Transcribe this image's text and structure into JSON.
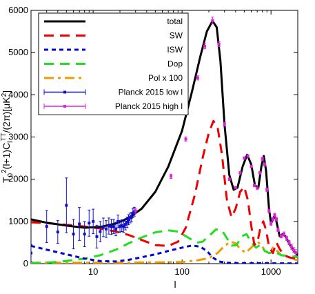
{
  "chart_data": {
    "type": "line",
    "xlabel": "l",
    "ylabel_parts": [
      "T",
      "0",
      "2",
      "(l+1)C",
      "l",
      "TT",
      "/(2π)[μK",
      "2",
      "]"
    ],
    "xscale": "log",
    "xlim": [
      2,
      2000
    ],
    "ylim": [
      0,
      6000
    ],
    "x_ticks": [
      {
        "value": 10,
        "label": "10"
      },
      {
        "value": 100,
        "label": "100"
      },
      {
        "value": 1000,
        "label": "1000"
      }
    ],
    "y_ticks": [
      {
        "value": 0,
        "label": "0"
      },
      {
        "value": 1000,
        "label": "1000"
      },
      {
        "value": 2000,
        "label": "2000"
      },
      {
        "value": 3000,
        "label": "3000"
      },
      {
        "value": 4000,
        "label": "4000"
      },
      {
        "value": 5000,
        "label": "5000"
      },
      {
        "value": 6000,
        "label": "6000"
      }
    ],
    "legend_position": "top-left",
    "series": [
      {
        "name": "total",
        "color": "#000000",
        "style": "solid",
        "points": [
          [
            2,
            1050
          ],
          [
            3,
            970
          ],
          [
            5,
            900
          ],
          [
            8,
            850
          ],
          [
            12,
            870
          ],
          [
            18,
            950
          ],
          [
            25,
            1080
          ],
          [
            35,
            1300
          ],
          [
            50,
            1700
          ],
          [
            70,
            2300
          ],
          [
            100,
            3150
          ],
          [
            130,
            4100
          ],
          [
            160,
            4900
          ],
          [
            190,
            5500
          ],
          [
            220,
            5750
          ],
          [
            245,
            5600
          ],
          [
            270,
            4800
          ],
          [
            300,
            3300
          ],
          [
            340,
            2100
          ],
          [
            380,
            1750
          ],
          [
            420,
            1800
          ],
          [
            480,
            2300
          ],
          [
            540,
            2580
          ],
          [
            600,
            2350
          ],
          [
            660,
            1850
          ],
          [
            720,
            1800
          ],
          [
            780,
            2300
          ],
          [
            830,
            2550
          ],
          [
            880,
            2200
          ],
          [
            950,
            1300
          ],
          [
            1000,
            950
          ],
          [
            1050,
            1050
          ],
          [
            1100,
            1150
          ],
          [
            1150,
            1000
          ],
          [
            1250,
            650
          ],
          [
            1350,
            700
          ],
          [
            1450,
            650
          ],
          [
            1600,
            480
          ],
          [
            1800,
            300
          ],
          [
            2000,
            200
          ]
        ]
      },
      {
        "name": "SW",
        "color": "#ee0000",
        "style": "dashed",
        "points": [
          [
            2,
            980
          ],
          [
            3,
            960
          ],
          [
            5,
            920
          ],
          [
            8,
            880
          ],
          [
            12,
            830
          ],
          [
            18,
            760
          ],
          [
            25,
            680
          ],
          [
            35,
            560
          ],
          [
            50,
            440
          ],
          [
            70,
            420
          ],
          [
            90,
            520
          ],
          [
            110,
            850
          ],
          [
            140,
            1650
          ],
          [
            170,
            2500
          ],
          [
            200,
            3100
          ],
          [
            225,
            3380
          ],
          [
            250,
            3250
          ],
          [
            280,
            2600
          ],
          [
            320,
            1500
          ],
          [
            360,
            1100
          ],
          [
            400,
            1300
          ],
          [
            450,
            1700
          ],
          [
            500,
            1820
          ],
          [
            550,
            1500
          ],
          [
            600,
            900
          ],
          [
            650,
            450
          ],
          [
            700,
            480
          ],
          [
            760,
            850
          ],
          [
            820,
            1000
          ],
          [
            880,
            800
          ],
          [
            950,
            400
          ],
          [
            1050,
            250
          ],
          [
            1150,
            500
          ],
          [
            1250,
            350
          ],
          [
            1400,
            200
          ],
          [
            1600,
            150
          ],
          [
            2000,
            100
          ]
        ]
      },
      {
        "name": "ISW",
        "color": "#0000cc",
        "style": "dashed",
        "points": [
          [
            2,
            420
          ],
          [
            3,
            330
          ],
          [
            5,
            220
          ],
          [
            8,
            120
          ],
          [
            12,
            60
          ],
          [
            18,
            50
          ],
          [
            25,
            90
          ],
          [
            35,
            150
          ],
          [
            50,
            220
          ],
          [
            70,
            300
          ],
          [
            100,
            380
          ],
          [
            130,
            430
          ],
          [
            160,
            400
          ],
          [
            190,
            300
          ],
          [
            220,
            150
          ],
          [
            260,
            50
          ],
          [
            320,
            20
          ],
          [
            450,
            10
          ],
          [
            2000,
            5
          ]
        ]
      },
      {
        "name": "Dop",
        "color": "#22dd22",
        "style": "dashed",
        "points": [
          [
            2,
            10
          ],
          [
            4,
            40
          ],
          [
            8,
            120
          ],
          [
            12,
            200
          ],
          [
            18,
            330
          ],
          [
            25,
            480
          ],
          [
            35,
            620
          ],
          [
            50,
            740
          ],
          [
            70,
            790
          ],
          [
            90,
            760
          ],
          [
            110,
            650
          ],
          [
            130,
            560
          ],
          [
            150,
            500
          ],
          [
            170,
            520
          ],
          [
            200,
            650
          ],
          [
            240,
            810
          ],
          [
            280,
            790
          ],
          [
            320,
            600
          ],
          [
            360,
            430
          ],
          [
            410,
            440
          ],
          [
            470,
            650
          ],
          [
            530,
            700
          ],
          [
            600,
            500
          ],
          [
            680,
            380
          ],
          [
            760,
            450
          ],
          [
            850,
            300
          ],
          [
            950,
            250
          ],
          [
            1100,
            280
          ],
          [
            1300,
            200
          ],
          [
            1600,
            180
          ],
          [
            2000,
            150
          ]
        ]
      },
      {
        "name": "Pol x 100",
        "color": "#ee9a00",
        "style": "dashed",
        "points": [
          [
            2,
            20
          ],
          [
            10,
            20
          ],
          [
            50,
            30
          ],
          [
            100,
            40
          ],
          [
            150,
            80
          ],
          [
            200,
            130
          ],
          [
            250,
            250
          ],
          [
            300,
            420
          ],
          [
            350,
            520
          ],
          [
            400,
            480
          ],
          [
            450,
            350
          ],
          [
            520,
            260
          ],
          [
            600,
            380
          ],
          [
            700,
            520
          ],
          [
            780,
            450
          ],
          [
            850,
            300
          ],
          [
            950,
            250
          ],
          [
            1050,
            380
          ],
          [
            1150,
            320
          ],
          [
            1300,
            200
          ],
          [
            1500,
            180
          ],
          [
            1700,
            120
          ],
          [
            2000,
            80
          ]
        ]
      }
    ],
    "data_series": [
      {
        "name": "Planck 2015 low l",
        "color": "#1010cc",
        "points": [
          [
            2,
            250,
            200
          ],
          [
            3,
            880,
            380
          ],
          [
            4,
            750,
            270
          ],
          [
            5,
            1380,
            650
          ],
          [
            6,
            700,
            350
          ],
          [
            7,
            940,
            390
          ],
          [
            8,
            700,
            300
          ],
          [
            9,
            960,
            310
          ],
          [
            10,
            1000,
            290
          ],
          [
            11,
            640,
            270
          ],
          [
            12,
            760,
            240
          ],
          [
            13,
            860,
            220
          ],
          [
            14,
            820,
            200
          ],
          [
            15,
            890,
            190
          ],
          [
            16,
            870,
            180
          ],
          [
            17,
            880,
            170
          ],
          [
            18,
            820,
            160
          ],
          [
            19,
            1000,
            150
          ],
          [
            20,
            880,
            140
          ],
          [
            21,
            900,
            140
          ],
          [
            22,
            870,
            130
          ],
          [
            23,
            930,
            130
          ],
          [
            24,
            980,
            125
          ],
          [
            25,
            1040,
            120
          ],
          [
            26,
            1080,
            115
          ],
          [
            27,
            1100,
            110
          ],
          [
            28,
            1200,
            110
          ],
          [
            29,
            1230,
            105
          ]
        ]
      },
      {
        "name": "Planck 2015 high l",
        "color": "#dd22dd",
        "points": [
          [
            30,
            1250,
            60
          ],
          [
            75,
            2070,
            50
          ],
          [
            110,
            2950,
            50
          ],
          [
            150,
            4400,
            50
          ],
          [
            180,
            5150,
            60
          ],
          [
            220,
            5760,
            80
          ],
          [
            260,
            5200,
            60
          ],
          [
            300,
            3300,
            40
          ],
          [
            340,
            2000,
            30
          ],
          [
            400,
            1800,
            30
          ],
          [
            450,
            2150,
            30
          ],
          [
            500,
            2500,
            30
          ],
          [
            550,
            2550,
            30
          ],
          [
            600,
            2300,
            30
          ],
          [
            650,
            1850,
            30
          ],
          [
            700,
            1790,
            30
          ],
          [
            750,
            2150,
            30
          ],
          [
            800,
            2480,
            40
          ],
          [
            850,
            2350,
            40
          ],
          [
            900,
            1750,
            40
          ],
          [
            950,
            1250,
            40
          ],
          [
            1000,
            950,
            40
          ],
          [
            1050,
            1050,
            40
          ],
          [
            1100,
            1150,
            40
          ],
          [
            1150,
            1050,
            40
          ],
          [
            1200,
            800,
            40
          ],
          [
            1300,
            650,
            40
          ],
          [
            1400,
            700,
            50
          ],
          [
            1500,
            600,
            50
          ],
          [
            1600,
            500,
            50
          ],
          [
            1700,
            400,
            60
          ],
          [
            1800,
            320,
            60
          ],
          [
            1900,
            260,
            70
          ]
        ]
      }
    ]
  }
}
